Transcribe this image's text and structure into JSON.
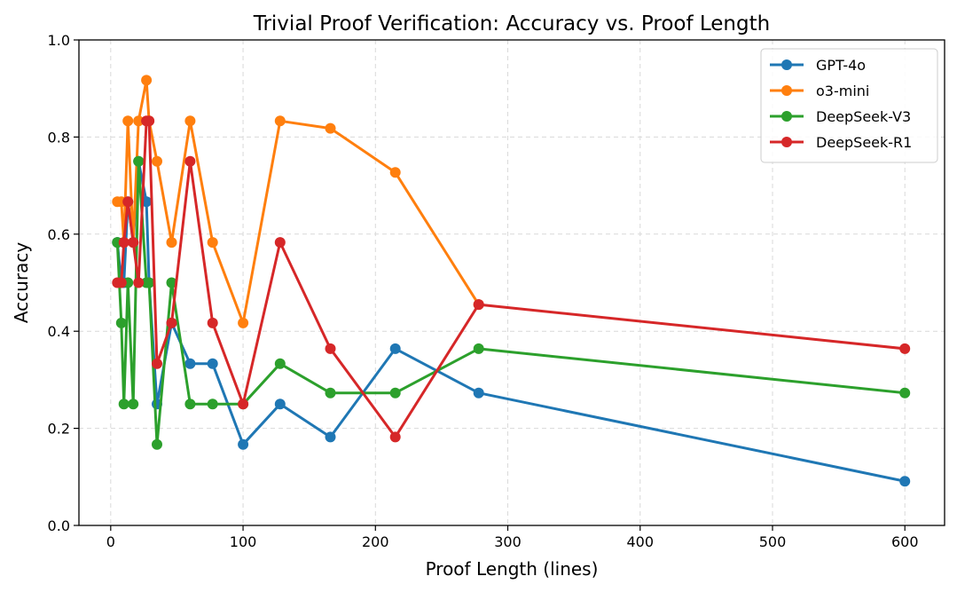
{
  "chart_data": {
    "type": "line",
    "title": "Trivial Proof Verification: Accuracy vs. Proof Length",
    "xlabel": "Proof Length (lines)",
    "ylabel": "Accuracy",
    "xlim": [
      -24,
      630
    ],
    "ylim": [
      0.0,
      1.0
    ],
    "xticks": [
      0,
      100,
      200,
      300,
      400,
      500,
      600
    ],
    "yticks": [
      0.0,
      0.2,
      0.4,
      0.6,
      0.8,
      1.0
    ],
    "xtick_labels": [
      "0",
      "100",
      "200",
      "300",
      "400",
      "500",
      "600"
    ],
    "ytick_labels": [
      "0.0",
      "0.2",
      "0.4",
      "0.6",
      "0.8",
      "1.0"
    ],
    "grid": true,
    "legend_position": "top-right",
    "series": [
      {
        "name": "GPT-4o",
        "color": "#1f77b4",
        "x": [
          5,
          8,
          10,
          13,
          17,
          21,
          27,
          29,
          35,
          46,
          60,
          77,
          100,
          128,
          166,
          215,
          278,
          600
        ],
        "y": [
          0.583,
          0.5,
          0.5,
          0.667,
          0.583,
          0.75,
          0.667,
          0.5,
          0.25,
          0.417,
          0.333,
          0.333,
          0.167,
          0.25,
          0.182,
          0.364,
          0.273,
          0.091
        ]
      },
      {
        "name": "o3-mini",
        "color": "#ff7f0e",
        "x": [
          5,
          8,
          10,
          13,
          17,
          21,
          27,
          29,
          35,
          46,
          60,
          77,
          100,
          128,
          166,
          215,
          278
        ],
        "y": [
          0.667,
          0.667,
          0.583,
          0.833,
          0.583,
          0.833,
          0.917,
          0.833,
          0.75,
          0.583,
          0.833,
          0.583,
          0.417,
          0.833,
          0.818,
          0.727,
          0.455
        ]
      },
      {
        "name": "DeepSeek-V3",
        "color": "#2ca02c",
        "x": [
          5,
          8,
          10,
          13,
          17,
          21,
          27,
          29,
          35,
          46,
          60,
          77,
          100,
          128,
          166,
          215,
          278,
          600
        ],
        "y": [
          0.583,
          0.417,
          0.25,
          0.5,
          0.25,
          0.75,
          0.5,
          0.5,
          0.167,
          0.5,
          0.25,
          0.25,
          0.25,
          0.333,
          0.273,
          0.273,
          0.364,
          0.273
        ]
      },
      {
        "name": "DeepSeek-R1",
        "color": "#d62728",
        "x": [
          5,
          8,
          10,
          13,
          17,
          21,
          27,
          29,
          35,
          46,
          60,
          77,
          100,
          128,
          166,
          215,
          278,
          600
        ],
        "y": [
          0.5,
          0.5,
          0.583,
          0.667,
          0.583,
          0.5,
          0.833,
          0.833,
          0.333,
          0.417,
          0.75,
          0.417,
          0.25,
          0.583,
          0.364,
          0.182,
          0.455,
          0.364
        ]
      }
    ]
  }
}
